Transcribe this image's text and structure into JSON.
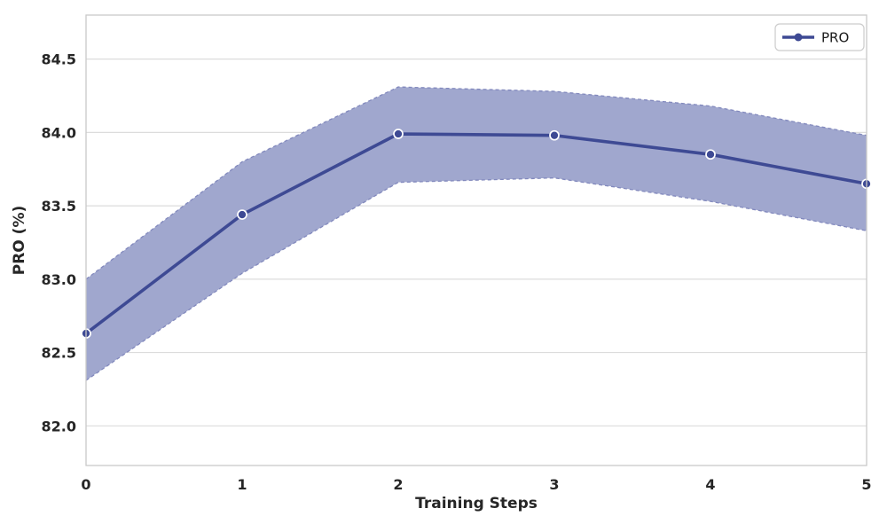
{
  "chart_data": {
    "type": "line",
    "title": "",
    "xlabel": "Training Steps",
    "ylabel": "PRO (%)",
    "x": [
      0,
      1,
      2,
      3,
      4,
      5
    ],
    "series": [
      {
        "name": "PRO",
        "values": [
          82.63,
          83.44,
          83.99,
          83.98,
          83.85,
          83.65
        ],
        "band_lower": [
          82.31,
          83.04,
          83.66,
          83.69,
          83.53,
          83.33
        ],
        "band_upper": [
          83.0,
          83.8,
          84.31,
          84.28,
          84.18,
          83.98
        ]
      }
    ],
    "xlim": [
      0,
      5
    ],
    "ylim": [
      81.73,
      84.8
    ],
    "xticks": [
      0,
      1,
      2,
      3,
      4,
      5
    ],
    "xtick_labels": [
      "0",
      "1",
      "2",
      "3",
      "4",
      "5"
    ],
    "yticks": [
      82.0,
      82.5,
      83.0,
      83.5,
      84.0,
      84.5
    ],
    "ytick_labels": [
      "82.0",
      "82.5",
      "83.0",
      "83.5",
      "84.0",
      "84.5"
    ],
    "grid": "horizontal",
    "legend": {
      "position": "upper right",
      "entries": [
        "PRO"
      ]
    },
    "colors": {
      "line": "#3e4a94",
      "marker_fill": "#3e4a94",
      "marker_edge": "#ffffff",
      "band_fill": "#a0a7ce",
      "band_edge": "#8289bd",
      "grid": "#dcdcdc",
      "spine": "#c9c9c9",
      "tick_text": "#262626",
      "legend_text": "#1a1a1a",
      "legend_border": "#cccccc",
      "background": "#ffffff"
    }
  },
  "legend": {
    "label": "PRO"
  },
  "axes": {
    "xlabel": "Training Steps",
    "ylabel": "PRO (%)"
  }
}
